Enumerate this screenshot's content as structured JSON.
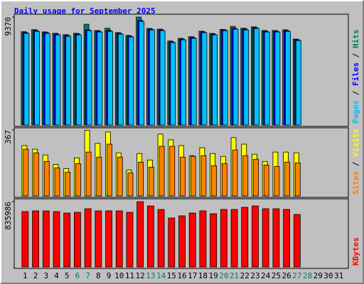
{
  "title": "Daily usage for September 2025",
  "categories": [
    "1",
    "2",
    "3",
    "4",
    "5",
    "6",
    "7",
    "8",
    "9",
    "10",
    "11",
    "12",
    "13",
    "14",
    "15",
    "16",
    "17",
    "18",
    "19",
    "20",
    "21",
    "22",
    "23",
    "24",
    "25",
    "26",
    "27",
    "28",
    "29",
    "30",
    "31"
  ],
  "category_colors": [
    "#000000",
    "#000000",
    "#000000",
    "#000000",
    "#000000",
    "#00805c",
    "#00805c",
    "#000000",
    "#000000",
    "#000000",
    "#000000",
    "#000000",
    "#00805c",
    "#00805c",
    "#000000",
    "#000000",
    "#000000",
    "#000000",
    "#000000",
    "#00805c",
    "#00805c",
    "#000000",
    "#000000",
    "#000000",
    "#000000",
    "#000000",
    "#00805c",
    "#00805c",
    "#000000",
    "#000000",
    "#000000"
  ],
  "chart_data": [
    {
      "type": "bar",
      "ylim": [
        0,
        9370
      ],
      "yticks": [
        9370
      ],
      "series": [
        {
          "name": "Hits",
          "color": "#00805c",
          "values": [
            8100,
            8280,
            8080,
            7960,
            7840,
            7960,
            8750,
            8200,
            8400,
            8020,
            7780,
            9370,
            8380,
            8320,
            7290,
            7520,
            7660,
            8140,
            7950,
            8300,
            8560,
            8400,
            8520,
            8200,
            8200,
            8260,
            7460,
            null,
            null,
            null,
            null
          ]
        },
        {
          "name": "Files",
          "color": "#0000ff",
          "values": [
            8030,
            8210,
            8020,
            7900,
            7780,
            7900,
            8260,
            8140,
            8200,
            7960,
            7710,
            9100,
            8320,
            8260,
            7220,
            7460,
            7600,
            8080,
            7890,
            8260,
            8390,
            8330,
            8450,
            8140,
            8140,
            8200,
            7400,
            null,
            null,
            null,
            null
          ]
        },
        {
          "name": "Pages",
          "color": "#00c0ff",
          "values": [
            7950,
            8130,
            7950,
            7820,
            7700,
            7820,
            8190,
            8070,
            8130,
            7890,
            7640,
            8990,
            8250,
            8190,
            7150,
            7390,
            7520,
            8010,
            7820,
            8190,
            8320,
            8250,
            8380,
            8070,
            8070,
            8130,
            7330,
            null,
            null,
            null,
            null
          ]
        }
      ]
    },
    {
      "type": "bar",
      "ylim": [
        0,
        367
      ],
      "yticks": [
        367
      ],
      "series": [
        {
          "name": "Visits",
          "color": "#ffff00",
          "values": [
            280,
            260,
            228,
            176,
            152,
            212,
            365,
            292,
            356,
            240,
            144,
            236,
            200,
            344,
            312,
            280,
            224,
            268,
            236,
            220,
            324,
            288,
            232,
            192,
            244,
            244,
            240,
            null,
            null,
            null,
            null
          ]
        },
        {
          "name": "Sites",
          "color": "#ff8000",
          "values": [
            260,
            240,
            192,
            156,
            132,
            180,
            244,
            216,
            288,
            216,
            128,
            188,
            160,
            276,
            276,
            216,
            220,
            224,
            168,
            180,
            256,
            224,
            204,
            172,
            164,
            188,
            184,
            null,
            null,
            null,
            null
          ]
        }
      ]
    },
    {
      "type": "bar",
      "ylim": [
        0,
        835986
      ],
      "yticks": [
        835986
      ],
      "series": [
        {
          "name": "KBytes",
          "color": "#ff0000",
          "values": [
            708800,
            717900,
            717900,
            708800,
            690600,
            699700,
            745100,
            717900,
            717900,
            717900,
            699700,
            835986,
            781500,
            736000,
            627000,
            654300,
            690600,
            717900,
            681500,
            736000,
            736000,
            763300,
            781500,
            745100,
            745100,
            736000,
            672400,
            null,
            null,
            null,
            null
          ]
        }
      ]
    }
  ]
}
